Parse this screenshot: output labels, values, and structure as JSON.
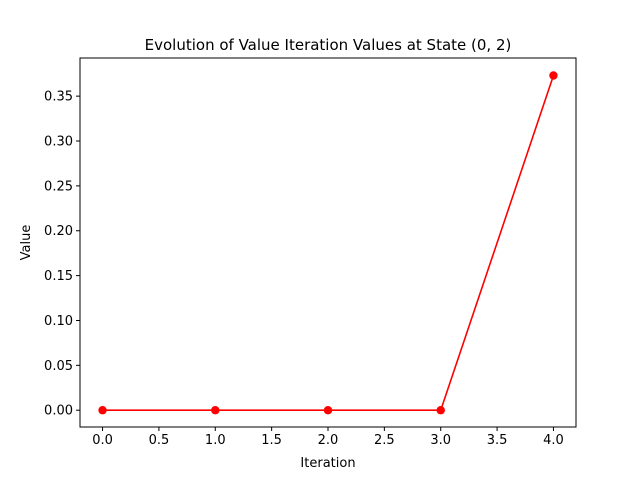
{
  "chart_data": {
    "type": "line",
    "title": "Evolution of Value Iteration Values at State (0, 2)",
    "xlabel": "Iteration",
    "ylabel": "Value",
    "xlim": [
      -0.2,
      4.2
    ],
    "ylim": [
      -0.0187,
      0.3925
    ],
    "xticks": [
      0.0,
      0.5,
      1.0,
      1.5,
      2.0,
      2.5,
      3.0,
      3.5,
      4.0
    ],
    "xtick_labels": [
      "0.0",
      "0.5",
      "1.0",
      "1.5",
      "2.0",
      "2.5",
      "3.0",
      "3.5",
      "4.0"
    ],
    "yticks": [
      0.0,
      0.05,
      0.1,
      0.15,
      0.2,
      0.25,
      0.3,
      0.35
    ],
    "ytick_labels": [
      "0.00",
      "0.05",
      "0.10",
      "0.15",
      "0.20",
      "0.25",
      "0.30",
      "0.35"
    ],
    "grid": false,
    "series": [
      {
        "x": [
          0,
          1,
          2,
          3,
          4
        ],
        "y": [
          0.0,
          0.0,
          0.0,
          0.0,
          0.373
        ],
        "color": "#ff0000",
        "marker": "circle"
      }
    ]
  }
}
